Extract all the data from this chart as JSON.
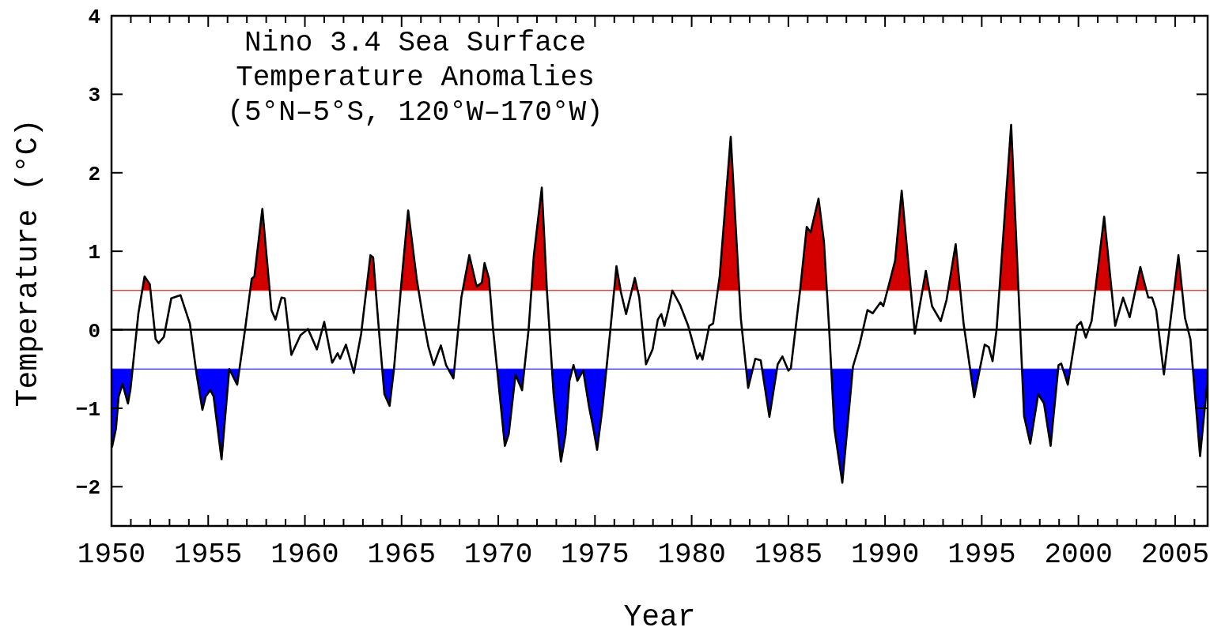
{
  "chart_data": {
    "type": "line",
    "title": "Nino 3.4 Sea Surface\nTemperature Anomalies\n(5°N–5°S, 120°W–170°W)",
    "xlabel": "Year",
    "ylabel": "Temperature (°C)",
    "x": [
      1950.03,
      1950.23,
      1950.37,
      1950.57,
      1950.85,
      1950.98,
      1951.39,
      1951.71,
      1951.98,
      1952.28,
      1952.44,
      1952.71,
      1953.09,
      1953.57,
      1954.05,
      1954.39,
      1954.7,
      1954.87,
      1955.11,
      1955.28,
      1955.69,
      1956.09,
      1956.5,
      1956.91,
      1957.25,
      1957.39,
      1957.8,
      1958.27,
      1958.48,
      1958.79,
      1958.96,
      1959.3,
      1959.77,
      1960.16,
      1960.62,
      1961.0,
      1961.41,
      1961.69,
      1961.82,
      1962.12,
      1962.53,
      1962.91,
      1963.39,
      1963.53,
      1963.8,
      1964.11,
      1964.38,
      1964.61,
      1965.02,
      1965.34,
      1965.78,
      1966.11,
      1966.39,
      1966.66,
      1967.03,
      1967.3,
      1967.68,
      1968.09,
      1968.5,
      1968.88,
      1969.15,
      1969.29,
      1969.52,
      1969.73,
      1970.0,
      1970.34,
      1970.54,
      1970.89,
      1971.23,
      1971.57,
      1971.84,
      1972.25,
      1972.52,
      1972.86,
      1973.24,
      1973.48,
      1973.68,
      1973.89,
      1974.09,
      1974.39,
      1974.7,
      1974.91,
      1975.11,
      1975.39,
      1975.8,
      1976.11,
      1976.34,
      1976.61,
      1977.06,
      1977.29,
      1977.64,
      1977.98,
      1978.25,
      1978.43,
      1978.59,
      1978.79,
      1979.0,
      1979.41,
      1979.82,
      1980.29,
      1980.43,
      1980.56,
      1980.91,
      1981.11,
      1981.45,
      1982.02,
      1982.54,
      1982.92,
      1983.29,
      1983.57,
      1984.02,
      1984.45,
      1984.69,
      1985.0,
      1985.13,
      1985.61,
      1985.95,
      1986.15,
      1986.56,
      1986.84,
      1987.11,
      1987.38,
      1987.79,
      1988.34,
      1988.68,
      1989.09,
      1989.36,
      1989.77,
      1989.91,
      1990.31,
      1990.52,
      1990.86,
      1991.54,
      1992.11,
      1992.43,
      1992.88,
      1993.18,
      1993.65,
      1994.06,
      1994.61,
      1995.15,
      1995.36,
      1995.56,
      1995.77,
      1996.52,
      1996.99,
      1997.19,
      1997.51,
      1997.92,
      1998.22,
      1998.56,
      1998.97,
      1999.11,
      1999.45,
      1999.93,
      2000.13,
      2000.38,
      2000.68,
      2001.33,
      2001.9,
      2002.31,
      2002.65,
      2003.2,
      2003.61,
      2003.81,
      2004.02,
      2004.42,
      2005.17,
      2005.51,
      2005.79,
      2006.29,
      2006.67
    ],
    "series": [
      {
        "color": "#000000",
        "values": [
          -1.49,
          -1.26,
          -0.85,
          -0.69,
          -0.94,
          -0.76,
          0.21,
          0.68,
          0.58,
          -0.12,
          -0.17,
          -0.09,
          0.4,
          0.44,
          0.08,
          -0.55,
          -1.02,
          -0.85,
          -0.77,
          -0.85,
          -1.65,
          -0.5,
          -0.7,
          0.01,
          0.65,
          0.68,
          1.54,
          0.25,
          0.13,
          0.41,
          0.4,
          -0.32,
          -0.07,
          0.01,
          -0.25,
          0.1,
          -0.42,
          -0.3,
          -0.37,
          -0.19,
          -0.55,
          -0.05,
          0.95,
          0.92,
          0.08,
          -0.82,
          -0.97,
          -0.49,
          0.68,
          1.52,
          0.65,
          0.15,
          -0.22,
          -0.45,
          -0.2,
          -0.45,
          -0.62,
          0.41,
          0.95,
          0.55,
          0.6,
          0.85,
          0.65,
          0.01,
          -0.65,
          -1.48,
          -1.33,
          -0.57,
          -0.77,
          0.01,
          0.95,
          1.81,
          0.48,
          -0.82,
          -1.68,
          -1.33,
          -0.65,
          -0.45,
          -0.65,
          -0.52,
          -0.99,
          -1.25,
          -1.53,
          -0.99,
          0.01,
          0.81,
          0.48,
          0.2,
          0.66,
          0.41,
          -0.44,
          -0.25,
          0.13,
          0.2,
          0.05,
          0.25,
          0.5,
          0.31,
          0.05,
          -0.37,
          -0.3,
          -0.38,
          0.05,
          0.08,
          0.68,
          2.46,
          0.15,
          -0.74,
          -0.37,
          -0.39,
          -1.11,
          -0.44,
          -0.34,
          -0.52,
          -0.49,
          0.51,
          1.31,
          1.24,
          1.67,
          1.12,
          0.01,
          -1.26,
          -1.95,
          -0.47,
          -0.19,
          0.25,
          0.21,
          0.35,
          0.3,
          0.68,
          0.88,
          1.77,
          -0.05,
          0.75,
          0.3,
          0.11,
          0.38,
          1.09,
          0.08,
          -0.86,
          -0.19,
          -0.22,
          -0.4,
          0.01,
          2.61,
          0.0,
          -1.1,
          -1.45,
          -0.82,
          -0.94,
          -1.48,
          -0.45,
          -0.43,
          -0.7,
          0.05,
          0.1,
          -0.1,
          0.11,
          1.44,
          0.05,
          0.41,
          0.16,
          0.8,
          0.41,
          0.41,
          0.25,
          -0.57,
          0.95,
          0.15,
          -0.12,
          -1.61,
          -0.65
        ]
      }
    ],
    "ref_lines": [
      {
        "axis": "y",
        "value": 0,
        "color": "#000000"
      },
      {
        "axis": "y",
        "value": 0.5,
        "color": "#d40000"
      },
      {
        "axis": "y",
        "value": -0.5,
        "color": "#0000ff"
      }
    ],
    "xlim": [
      1950,
      2006.68
    ],
    "xticks": [
      1950,
      {
        "value": 1951,
        "label": null
      },
      {
        "value": 1952,
        "label": null
      },
      {
        "value": 1953,
        "label": null
      },
      {
        "value": 1954,
        "label": null
      },
      1955,
      {
        "value": 1956,
        "label": null
      },
      {
        "value": 1957,
        "label": null
      },
      {
        "value": 1958,
        "label": null
      },
      {
        "value": 1959,
        "label": null
      },
      1960,
      {
        "value": 1961,
        "label": null
      },
      {
        "value": 1962,
        "label": null
      },
      {
        "value": 1963,
        "label": null
      },
      {
        "value": 1964,
        "label": null
      },
      1965,
      {
        "value": 1966,
        "label": null
      },
      {
        "value": 1967,
        "label": null
      },
      {
        "value": 1968,
        "label": null
      },
      {
        "value": 1969,
        "label": null
      },
      1970,
      {
        "value": 1971,
        "label": null
      },
      {
        "value": 1972,
        "label": null
      },
      {
        "value": 1973,
        "label": null
      },
      {
        "value": 1974,
        "label": null
      },
      1975,
      {
        "value": 1976,
        "label": null
      },
      {
        "value": 1977,
        "label": null
      },
      {
        "value": 1978,
        "label": null
      },
      {
        "value": 1979,
        "label": null
      },
      1980,
      {
        "value": 1981,
        "label": null
      },
      {
        "value": 1982,
        "label": null
      },
      {
        "value": 1983,
        "label": null
      },
      {
        "value": 1984,
        "label": null
      },
      1985,
      {
        "value": 1986,
        "label": null
      },
      {
        "value": 1987,
        "label": null
      },
      {
        "value": 1988,
        "label": null
      },
      {
        "value": 1989,
        "label": null
      },
      1990,
      {
        "value": 1991,
        "label": null
      },
      {
        "value": 1992,
        "label": null
      },
      {
        "value": 1993,
        "label": null
      },
      {
        "value": 1994,
        "label": null
      },
      1995,
      {
        "value": 1996,
        "label": null
      },
      {
        "value": 1997,
        "label": null
      },
      {
        "value": 1998,
        "label": null
      },
      {
        "value": 1999,
        "label": null
      },
      2000,
      {
        "value": 2001,
        "label": null
      },
      {
        "value": 2002,
        "label": null
      },
      {
        "value": 2003,
        "label": null
      },
      {
        "value": 2004,
        "label": null
      },
      2005,
      {
        "value": 2006,
        "label": null
      }
    ],
    "ylim": [
      -2.5,
      4
    ],
    "yticks": [
      -2,
      -1,
      0,
      1,
      2,
      3,
      4
    ],
    "grid": false,
    "marker": "none",
    "line_style": "solid"
  }
}
